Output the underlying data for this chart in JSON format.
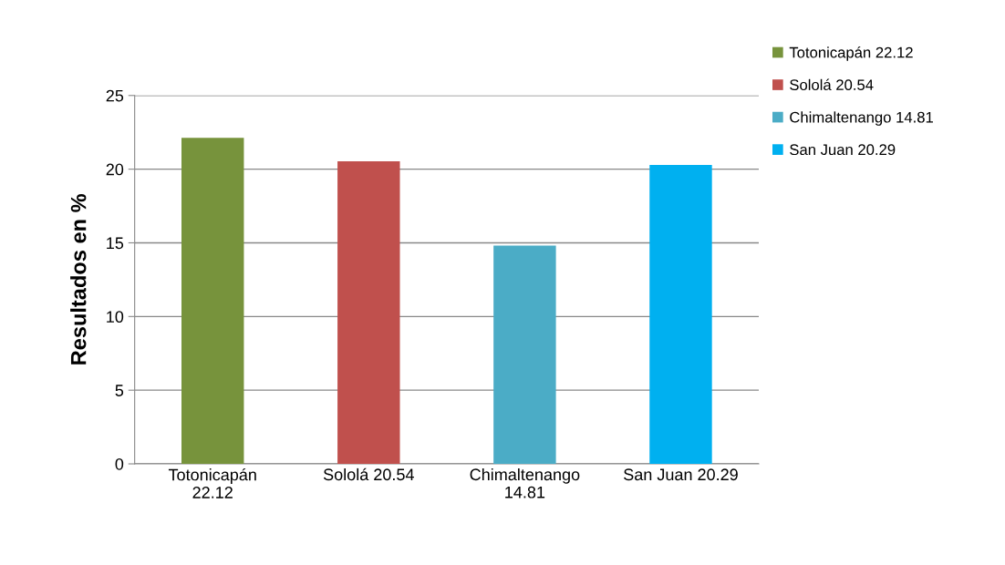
{
  "chart_data": {
    "type": "bar",
    "categories": [
      "Totonicapán 22.12",
      "Sololá 20.54",
      "Chimaltenango 14.81",
      "San Juan 20.29"
    ],
    "series": [
      {
        "name": "Totonicapán 22.12",
        "color": "#77933c",
        "values": [
          22.12,
          null,
          null,
          null
        ]
      },
      {
        "name": "Sololá 20.54",
        "color": "#c0504d",
        "values": [
          null,
          20.54,
          null,
          null
        ]
      },
      {
        "name": "Chimaltenango 14.81",
        "color": "#4bacc6",
        "values": [
          null,
          null,
          14.81,
          null
        ]
      },
      {
        "name": "San Juan 20.29",
        "color": "#00b0f0",
        "values": [
          null,
          null,
          null,
          20.29
        ]
      }
    ],
    "ylabel": "Resultados en %",
    "ylim": [
      0,
      25
    ],
    "yticks": [
      0,
      5,
      10,
      15,
      20,
      25
    ],
    "grid": "y",
    "legend": "top right"
  }
}
